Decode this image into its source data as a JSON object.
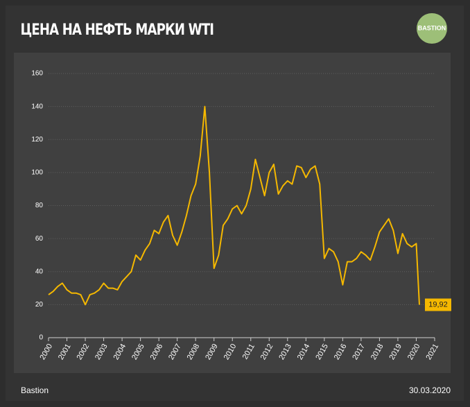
{
  "chart_data": {
    "type": "line",
    "title": "ЦЕНА НА НЕФТЬ МАРКИ WTI",
    "logo": "BASTION",
    "source": "Bastion",
    "date": "30.03.2020",
    "x": [
      2000,
      2000.25,
      2000.5,
      2000.75,
      2001,
      2001.25,
      2001.5,
      2001.75,
      2002,
      2002.25,
      2002.5,
      2002.75,
      2003,
      2003.25,
      2003.5,
      2003.75,
      2004,
      2004.25,
      2004.5,
      2004.75,
      2005,
      2005.25,
      2005.5,
      2005.75,
      2006,
      2006.25,
      2006.5,
      2006.75,
      2007,
      2007.25,
      2007.5,
      2007.75,
      2008,
      2008.25,
      2008.5,
      2008.75,
      2009,
      2009.25,
      2009.5,
      2009.75,
      2010,
      2010.25,
      2010.5,
      2010.75,
      2011,
      2011.25,
      2011.5,
      2011.75,
      2012,
      2012.25,
      2012.5,
      2012.75,
      2013,
      2013.25,
      2013.5,
      2013.75,
      2014,
      2014.25,
      2014.5,
      2014.75,
      2015,
      2015.25,
      2015.5,
      2015.75,
      2016,
      2016.25,
      2016.5,
      2016.75,
      2017,
      2017.25,
      2017.5,
      2017.75,
      2018,
      2018.25,
      2018.5,
      2018.75,
      2019,
      2019.25,
      2019.5,
      2019.75,
      2020,
      2020.17
    ],
    "series": [
      {
        "name": "WTI",
        "color": "#f5b800",
        "values": [
          26,
          28,
          31,
          33,
          29,
          27,
          27,
          26,
          20,
          26,
          27,
          29,
          33,
          30,
          30,
          29,
          34,
          37,
          40,
          50,
          47,
          53,
          57,
          65,
          63,
          70,
          74,
          62,
          56,
          64,
          74,
          86,
          93,
          110,
          140,
          100,
          42,
          50,
          68,
          72,
          78,
          80,
          75,
          80,
          90,
          108,
          97,
          86,
          100,
          105,
          87,
          92,
          95,
          93,
          104,
          103,
          97,
          102,
          104,
          93,
          48,
          54,
          52,
          46,
          32,
          46,
          46,
          48,
          52,
          50,
          47,
          55,
          64,
          68,
          72,
          65,
          51,
          63,
          57,
          55,
          57,
          19.92
        ],
        "value_labels": [
          null,
          null,
          null,
          null,
          null,
          null,
          null,
          null,
          null,
          null,
          null,
          null,
          null,
          null,
          null,
          null,
          null,
          null,
          null,
          null,
          null,
          null,
          null,
          null,
          null,
          null,
          null,
          null,
          null,
          null,
          null,
          null,
          null,
          null,
          null,
          null,
          null,
          null,
          null,
          null,
          null,
          null,
          null,
          null,
          null,
          null,
          null,
          null,
          null,
          null,
          null,
          null,
          null,
          null,
          null,
          null,
          null,
          null,
          null,
          null,
          null,
          null,
          null,
          null,
          null,
          null,
          null,
          null,
          null,
          null,
          null,
          null,
          null,
          null,
          null,
          null,
          null,
          null,
          null,
          null,
          null,
          "19,92"
        ]
      }
    ],
    "xlim": [
      2000,
      2021
    ],
    "xticks": [
      2000,
      2001,
      2002,
      2003,
      2004,
      2005,
      2006,
      2007,
      2008,
      2009,
      2010,
      2011,
      2012,
      2013,
      2014,
      2015,
      2016,
      2017,
      2018,
      2019,
      2020,
      2021
    ],
    "ylim": [
      0,
      160
    ],
    "yticks": [
      0,
      20,
      40,
      60,
      80,
      100,
      120,
      140,
      160
    ],
    "grid": true
  }
}
